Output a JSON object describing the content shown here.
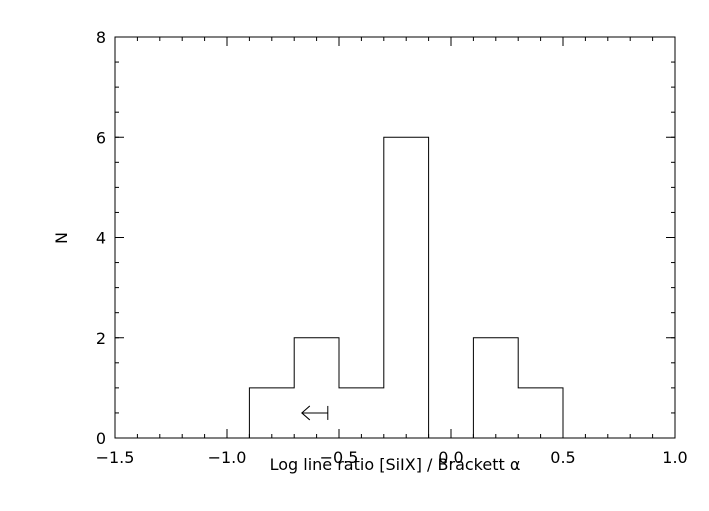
{
  "chart_data": {
    "type": "histogram",
    "title": "",
    "xlabel": "Log line ratio [SiIX] / Brackett α",
    "ylabel": "N",
    "xlim": [
      -1.5,
      1.0
    ],
    "ylim": [
      0,
      8
    ],
    "x_ticks": [
      "−1.5",
      "−1.0",
      "−0.5",
      "0.0",
      "0.5",
      "1.0"
    ],
    "x_tick_values": [
      -1.5,
      -1.0,
      -0.5,
      0.0,
      0.5,
      1.0
    ],
    "y_ticks": [
      "0",
      "2",
      "4",
      "6",
      "8"
    ],
    "y_tick_values": [
      0,
      2,
      4,
      6,
      8
    ],
    "x_minor_step": 0.1,
    "y_minor_step": 0.5,
    "bins": [
      {
        "x0": -0.9,
        "x1": -0.7,
        "count": 1
      },
      {
        "x0": -0.7,
        "x1": -0.5,
        "count": 2
      },
      {
        "x0": -0.5,
        "x1": -0.3,
        "count": 1
      },
      {
        "x0": -0.3,
        "x1": -0.1,
        "count": 6
      },
      {
        "x0": -0.1,
        "x1": 0.1,
        "count": 0
      },
      {
        "x0": 0.1,
        "x1": 0.3,
        "count": 2
      },
      {
        "x0": 0.3,
        "x1": 0.5,
        "count": 1
      }
    ],
    "upper_limit_marker": {
      "x": -0.55,
      "y": 0.5,
      "direction": "left"
    },
    "grid": false,
    "legend": "none",
    "colors": {
      "line": "#000000",
      "background": "#ffffff"
    }
  }
}
